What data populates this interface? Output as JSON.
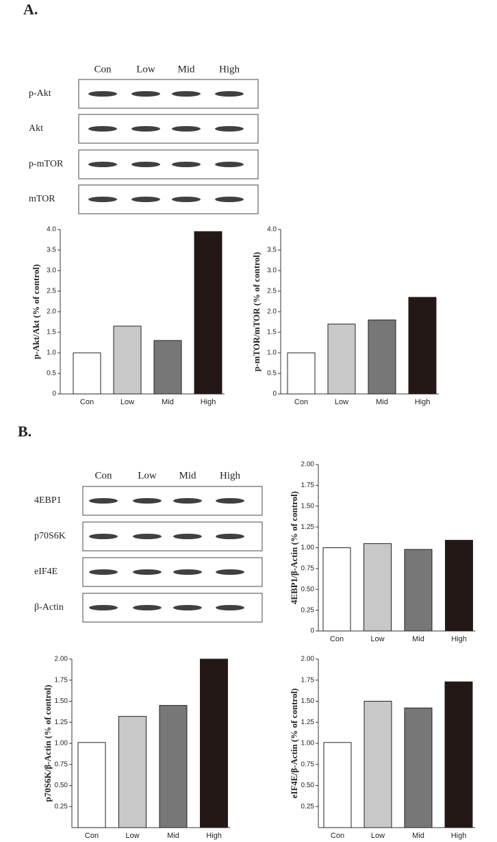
{
  "panel_labels": [
    "A.",
    "B."
  ],
  "blots": [
    {
      "lanes": [
        "Con",
        "Low",
        "Mid",
        "High"
      ],
      "rows": [
        "p-Akt",
        "Akt",
        "p-mTOR",
        "mTOR"
      ]
    },
    {
      "lanes": [
        "Con",
        "Low",
        "Mid",
        "High"
      ],
      "rows": [
        "4EBP1",
        "p70S6K",
        "eIF4E",
        "β-Actin"
      ]
    }
  ],
  "chart_data": [
    {
      "type": "bar",
      "y_label": "p-Akt/Akt (% of control)",
      "categories": [
        "Con",
        "Low",
        "Mid",
        "High"
      ],
      "values": [
        1.0,
        1.65,
        1.3,
        3.95
      ],
      "colors": [
        "#ffffff",
        "#c8c8c8",
        "#777777",
        "#231816"
      ],
      "ylim": [
        0,
        4
      ],
      "yticks": [
        0,
        0.5,
        {
          "value": 1,
          "label": "1.0"
        },
        1.5,
        {
          "value": 2,
          "label": "2.0"
        },
        2.5,
        {
          "value": 3,
          "label": "3.0"
        },
        3.5,
        {
          "value": 4,
          "label": "4.0"
        }
      ]
    },
    {
      "type": "bar",
      "y_label": "p-mTOR/mTOR (% of control)",
      "categories": [
        "Con",
        "Low",
        "Mid",
        "High"
      ],
      "values": [
        1.0,
        1.7,
        1.8,
        2.35
      ],
      "colors": [
        "#ffffff",
        "#c8c8c8",
        "#777777",
        "#231816"
      ],
      "ylim": [
        0,
        4
      ],
      "yticks": [
        0,
        0.5,
        {
          "value": 1,
          "label": "1.0"
        },
        1.5,
        {
          "value": 2,
          "label": "2.0"
        },
        2.5,
        {
          "value": 3,
          "label": "3.0"
        },
        3.5,
        {
          "value": 4,
          "label": "4.0"
        }
      ]
    },
    {
      "type": "bar",
      "y_label": "4EBP1/β-Actin (% of control)",
      "categories": [
        "Con",
        "Low",
        "Mid",
        "High"
      ],
      "values": [
        1.0,
        1.05,
        0.98,
        1.09
      ],
      "colors": [
        "#ffffff",
        "#c8c8c8",
        "#777777",
        "#231816"
      ],
      "ylim": [
        0,
        2
      ],
      "yticks": [
        0,
        0.25,
        {
          "value": 0.5,
          "label": "0.50"
        },
        0.75,
        {
          "value": 1,
          "label": "1.00"
        },
        1.25,
        {
          "value": 1.5,
          "label": "1.50"
        },
        1.75,
        {
          "value": 2,
          "label": "2.00"
        }
      ]
    },
    {
      "type": "bar",
      "y_label": "p70S6K/β-Actin (% of control)",
      "categories": [
        "Con",
        "Low",
        "Mid",
        "High"
      ],
      "values": [
        1.01,
        1.32,
        1.45,
        2.0
      ],
      "colors": [
        "#ffffff",
        "#c8c8c8",
        "#777777",
        "#231816"
      ],
      "ylim": [
        0,
        2
      ],
      "yticks": [
        0.25,
        {
          "value": 0.5,
          "label": "0.50"
        },
        0.75,
        {
          "value": 1,
          "label": "1.00"
        },
        1.25,
        {
          "value": 1.5,
          "label": "1.50"
        },
        1.75,
        {
          "value": 2,
          "label": "2.00"
        }
      ]
    },
    {
      "type": "bar",
      "y_label": "eIF4E/β-Actin (% of control)",
      "categories": [
        "Con",
        "Low",
        "Mid",
        "High"
      ],
      "values": [
        1.01,
        1.5,
        1.42,
        1.73
      ],
      "colors": [
        "#ffffff",
        "#c8c8c8",
        "#777777",
        "#231816"
      ],
      "ylim": [
        0,
        2
      ],
      "yticks": [
        0.25,
        {
          "value": 0.5,
          "label": "0.50"
        },
        0.75,
        {
          "value": 1,
          "label": "1.00"
        },
        1.25,
        {
          "value": 1.5,
          "label": "1.50"
        },
        1.75,
        {
          "value": 2,
          "label": "2.00"
        }
      ]
    }
  ]
}
